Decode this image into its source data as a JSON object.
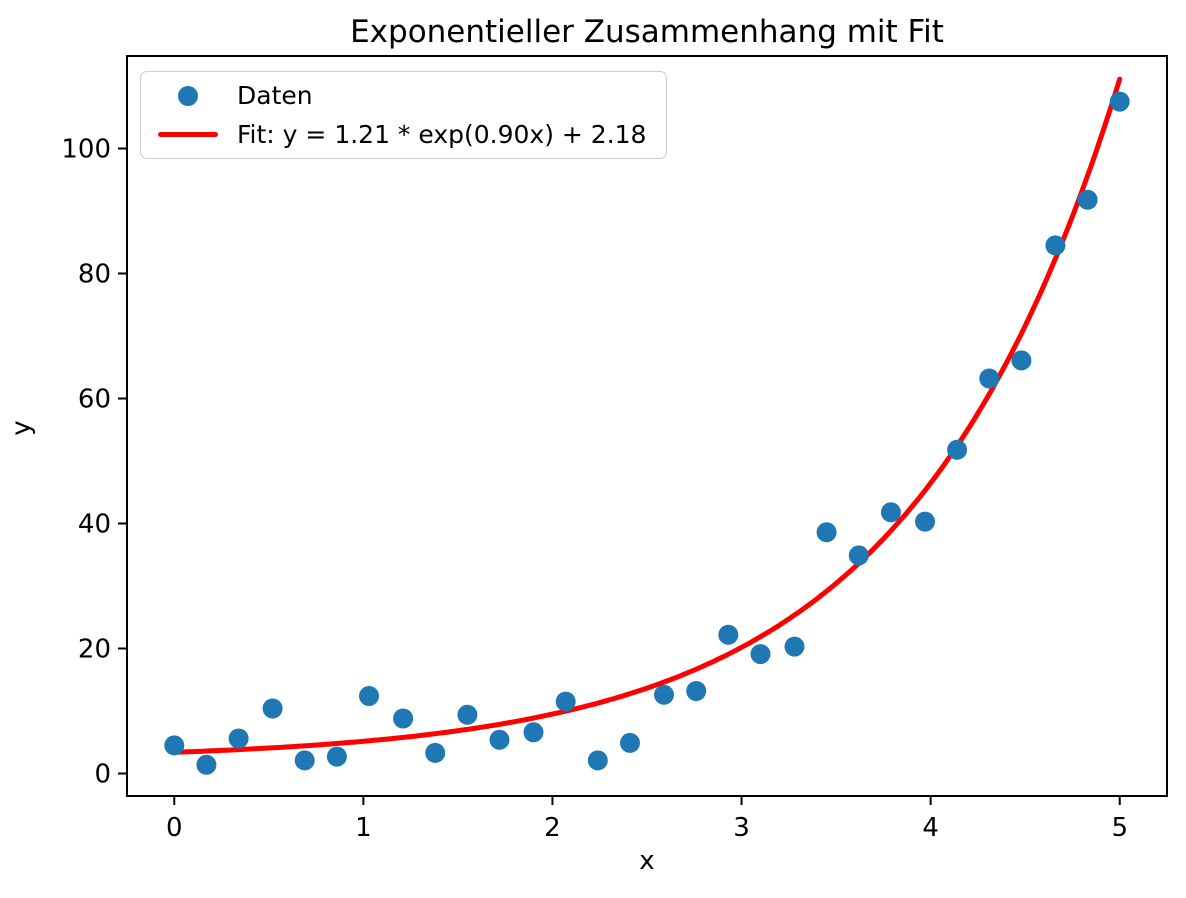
{
  "chart_data": {
    "type": "scatter",
    "title": "Exponentieller Zusammenhang mit Fit",
    "xlabel": "x",
    "ylabel": "y",
    "xlim": [
      -0.25,
      5.25
    ],
    "ylim": [
      -3.6,
      114.8
    ],
    "xticks": [
      0,
      1,
      2,
      3,
      4,
      5
    ],
    "yticks": [
      0,
      20,
      40,
      60,
      80,
      100
    ],
    "grid": false,
    "legend_position": "upper left",
    "legend": {
      "entries": [
        {
          "label": "Daten",
          "marker": "dot",
          "color": "#1f77b4"
        },
        {
          "label": "Fit: y = 1.21 * exp(0.90x) + 2.18",
          "marker": "line",
          "color": "#ff0000"
        }
      ]
    },
    "series": [
      {
        "name": "Daten",
        "type": "scatter",
        "color": "#1f77b4",
        "x": [
          0.0,
          0.17,
          0.34,
          0.52,
          0.69,
          0.86,
          1.03,
          1.21,
          1.38,
          1.55,
          1.72,
          1.9,
          2.07,
          2.24,
          2.41,
          2.59,
          2.76,
          2.93,
          3.1,
          3.28,
          3.45,
          3.62,
          3.79,
          3.97,
          4.14,
          4.31,
          4.48,
          4.66,
          4.83,
          5.0
        ],
        "y": [
          4.5,
          1.4,
          5.6,
          10.4,
          2.1,
          2.7,
          12.4,
          8.8,
          3.3,
          9.4,
          5.4,
          6.6,
          11.5,
          2.1,
          4.9,
          12.6,
          13.2,
          22.2,
          19.1,
          20.3,
          38.6,
          34.9,
          41.8,
          40.3,
          51.8,
          63.2,
          66.1,
          84.5,
          91.8,
          107.5
        ]
      },
      {
        "name": "Fit",
        "type": "line",
        "color": "#ff0000",
        "fit_params": {
          "a": 1.21,
          "b": 0.9,
          "c": 2.18
        },
        "x_range": [
          0,
          5
        ]
      }
    ],
    "colors": {
      "scatter": "#1f77b4",
      "fit_line": "#ff0000",
      "axes": "#000000",
      "legend_border": "#cccccc",
      "background": "#ffffff"
    }
  }
}
